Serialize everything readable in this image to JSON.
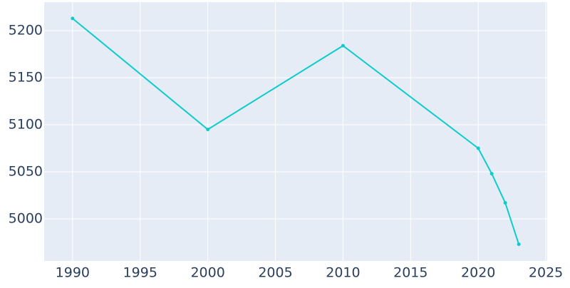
{
  "chart_data": {
    "type": "line",
    "x": [
      1990,
      2000,
      2010,
      2020,
      2021,
      2022,
      2023
    ],
    "series": [
      {
        "color": "#0fcccc",
        "values": [
          5213,
          5095,
          5184,
          5075,
          5048,
          5017,
          4973
        ]
      }
    ],
    "xlim": [
      1987.9,
      2025.1
    ],
    "xticks": [
      1990,
      1995,
      2000,
      2005,
      2010,
      2015,
      2020,
      2025
    ],
    "ylim": [
      4955.3,
      5230.3
    ],
    "yticks": [
      5000,
      5050,
      5100,
      5150,
      5200
    ],
    "grid": true
  }
}
